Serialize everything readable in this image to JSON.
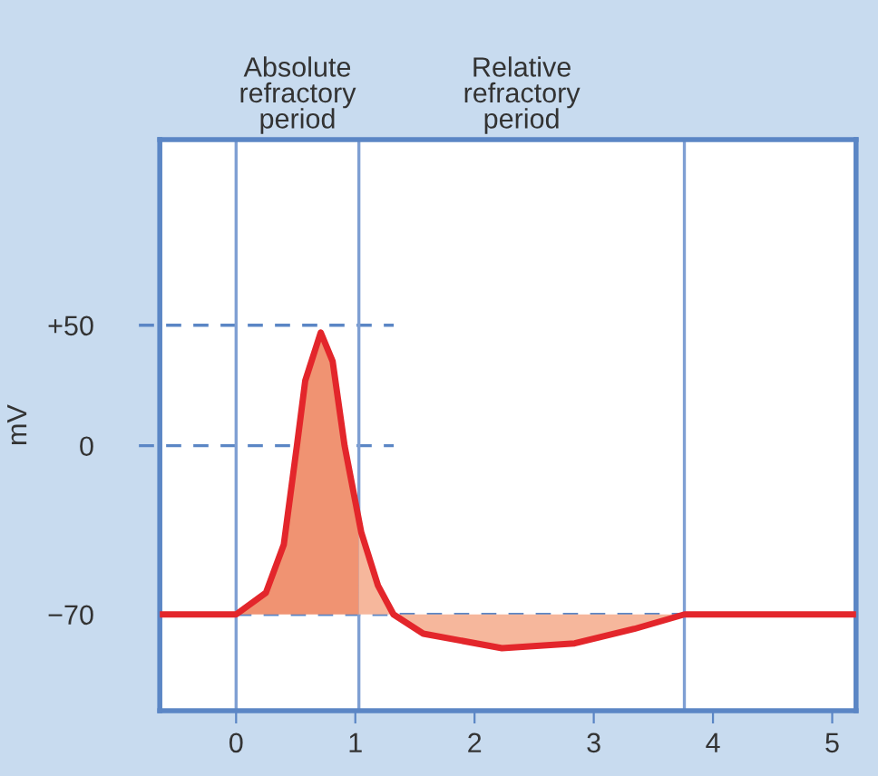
{
  "chart_data": {
    "type": "line",
    "ylabel": "mV",
    "series": [
      {
        "color": "#e3262b",
        "x": [
          -0.64,
          0,
          0.25,
          0.4,
          0.51,
          0.58,
          0.71,
          0.81,
          0.91,
          1.05,
          1.19,
          1.32,
          1.57,
          2.23,
          2.84,
          3.34,
          3.76,
          5.2
        ],
        "values": [
          -70,
          -70,
          -61,
          -41,
          0,
          27,
          47,
          35,
          0,
          -36,
          -58,
          -70,
          -78,
          -84,
          -82,
          -76,
          -70,
          -70
        ]
      },
      {
        "type": "area",
        "color": "#f09372",
        "x": [
          0,
          0.25,
          0.4,
          0.51,
          0.58,
          0.71,
          0.81,
          0.91,
          1.03,
          1.03
        ],
        "values": [
          -70,
          -61,
          -41,
          0,
          27,
          47,
          35,
          0,
          -31,
          -70
        ]
      },
      {
        "type": "area",
        "color": "#f6b79c",
        "x": [
          1.03,
          1.03,
          1.05,
          1.19,
          1.32,
          1.57,
          2.23,
          2.84,
          3.34,
          3.76
        ],
        "values": [
          -70,
          -31,
          -36,
          -58,
          -70,
          -78,
          -84,
          -82,
          -76,
          -70
        ]
      }
    ],
    "xlim": [
      -0.64,
      5.2
    ],
    "xticks": [
      0,
      1,
      2,
      3,
      4,
      5
    ],
    "ylim": [
      -110,
      127
    ],
    "yticks": [
      {
        "value": 50,
        "label": "+50"
      },
      0,
      {
        "value": -70,
        "label": "−70"
      }
    ],
    "ref_lines": [
      {
        "axis": "y",
        "value": 50,
        "line_style": "dashed",
        "color": "#5b86c5"
      },
      {
        "axis": "y",
        "value": 0,
        "line_style": "dashed",
        "color": "#5b86c5"
      },
      {
        "axis": "y",
        "value": -70,
        "line_style": "dashed",
        "color": "#5b86c5"
      },
      {
        "axis": "x",
        "value": 0,
        "line_style": "solid",
        "color": "#7f9fd3"
      },
      {
        "axis": "x",
        "value": 1.03,
        "line_style": "solid",
        "color": "#7f9fd3"
      },
      {
        "axis": "x",
        "value": 3.76,
        "line_style": "solid",
        "color": "#7f9fd3"
      }
    ],
    "annotations": [
      "Absolute\nrefractory\nperiod",
      "Relative\nrefractory\nperiod"
    ],
    "grid": false,
    "legend": false,
    "marker": "none",
    "line_style": "solid"
  }
}
